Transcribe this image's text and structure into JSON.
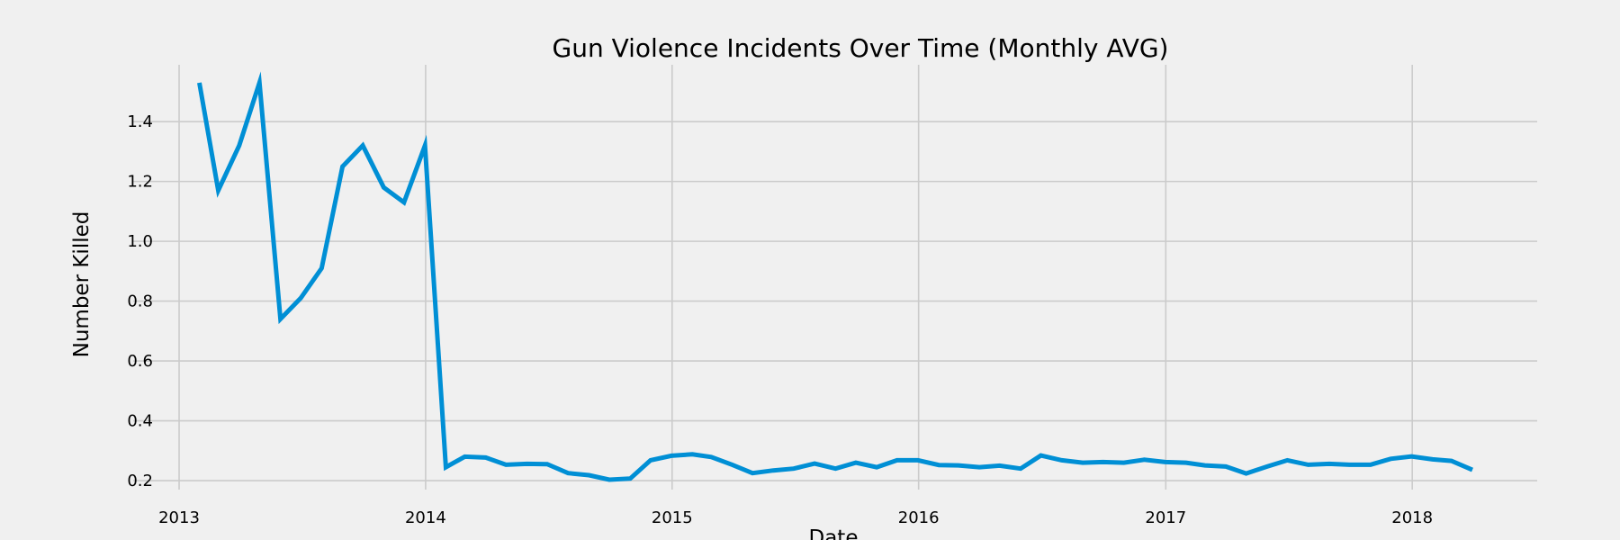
{
  "chart_data": {
    "type": "line",
    "title": "Gun Violence Incidents Over Time (Monthly AVG)",
    "xlabel": "Date",
    "ylabel": "Number Killed",
    "x_ticks": [
      "2013",
      "2014",
      "2015",
      "2016",
      "2017",
      "2018"
    ],
    "y_ticks": [
      "0.2",
      "0.4",
      "0.6",
      "0.8",
      "1.0",
      "1.2",
      "1.4"
    ],
    "ylim": [
      0.17,
      1.59
    ],
    "xlim": [
      "2012-10-25",
      "2018-07-05"
    ],
    "grid": true,
    "line_color": "#008fd5",
    "background_color": "#f0f0f0",
    "grid_color": "#cbcbcb",
    "series": [
      {
        "x": [
          "2013-01-31",
          "2013-02-28",
          "2013-03-31",
          "2013-04-30",
          "2013-05-31",
          "2013-06-30",
          "2013-07-31",
          "2013-08-31",
          "2013-09-30",
          "2013-10-31",
          "2013-11-30",
          "2013-12-31",
          "2014-01-31",
          "2014-02-28",
          "2014-03-31",
          "2014-04-30",
          "2014-05-31",
          "2014-06-30",
          "2014-07-31",
          "2014-08-31",
          "2014-09-30",
          "2014-10-31",
          "2014-11-30",
          "2014-12-31",
          "2015-01-31",
          "2015-02-28",
          "2015-03-31",
          "2015-04-30",
          "2015-05-31",
          "2015-06-30",
          "2015-07-31",
          "2015-08-31",
          "2015-09-30",
          "2015-10-31",
          "2015-11-30",
          "2015-12-31",
          "2016-01-31",
          "2016-02-29",
          "2016-03-31",
          "2016-04-30",
          "2016-05-31",
          "2016-06-30",
          "2016-07-31",
          "2016-08-31",
          "2016-09-30",
          "2016-10-31",
          "2016-11-30",
          "2016-12-31",
          "2017-01-31",
          "2017-02-28",
          "2017-03-31",
          "2017-04-30",
          "2017-05-31",
          "2017-06-30",
          "2017-07-31",
          "2017-08-31",
          "2017-09-30",
          "2017-10-31",
          "2017-11-30",
          "2017-12-31",
          "2018-01-31",
          "2018-02-28",
          "2018-03-31"
        ],
        "values": [
          1.53,
          1.17,
          1.32,
          1.53,
          0.74,
          0.81,
          0.91,
          1.25,
          1.32,
          1.18,
          1.13,
          1.32,
          0.245,
          0.28,
          0.277,
          0.253,
          0.256,
          0.255,
          0.225,
          0.218,
          0.203,
          0.207,
          0.268,
          0.283,
          0.288,
          0.279,
          0.253,
          0.225,
          0.234,
          0.24,
          0.257,
          0.24,
          0.26,
          0.245,
          0.268,
          0.268,
          0.252,
          0.251,
          0.245,
          0.25,
          0.24,
          0.284,
          0.268,
          0.26,
          0.262,
          0.26,
          0.27,
          0.262,
          0.26,
          0.251,
          0.247,
          0.224,
          0.247,
          0.268,
          0.253,
          0.256,
          0.253,
          0.253,
          0.273,
          0.281,
          0.271,
          0.266,
          0.236
        ]
      }
    ]
  }
}
